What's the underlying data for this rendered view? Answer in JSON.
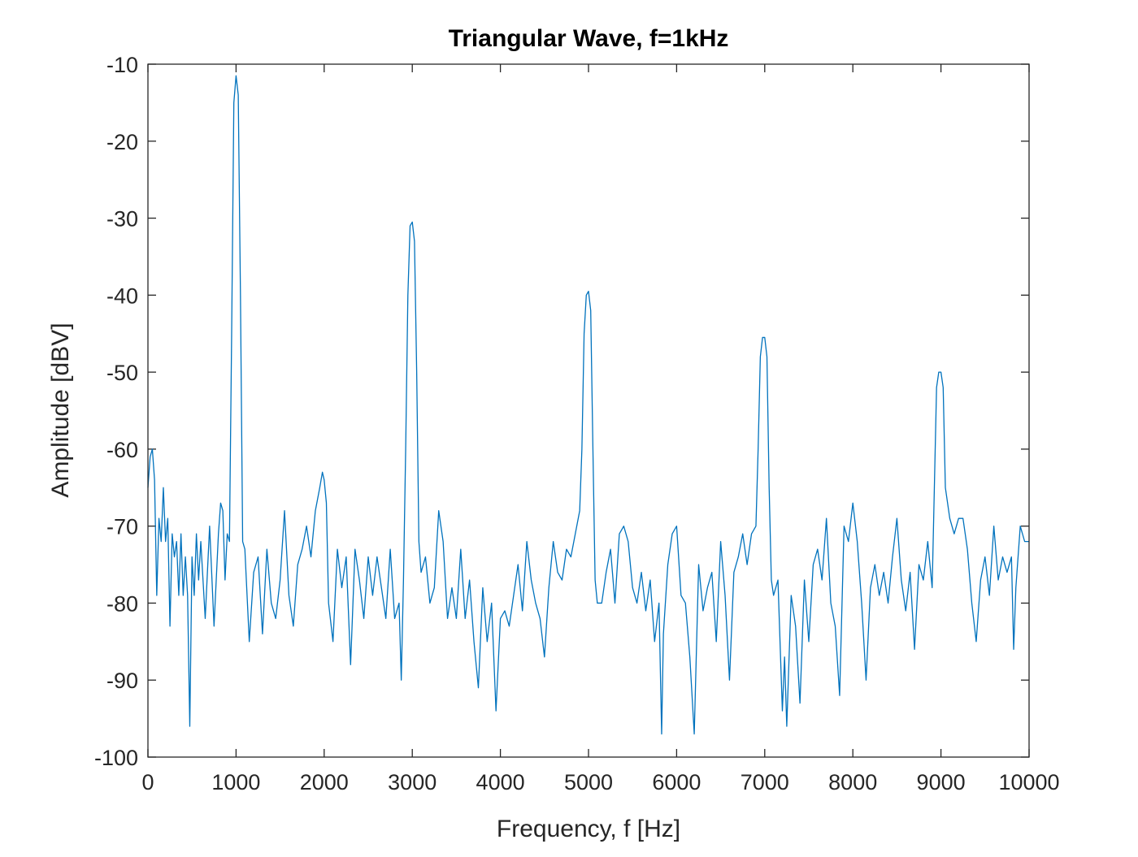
{
  "chart_data": {
    "type": "line",
    "title": "Triangular Wave, f=1kHz",
    "x_label": "Frequency, f [Hz]",
    "y_label": "Amplitude [dBV]",
    "xlim": [
      0,
      10000
    ],
    "ylim": [
      -100,
      -10
    ],
    "xticks": [
      0,
      1000,
      2000,
      3000,
      4000,
      5000,
      6000,
      7000,
      8000,
      9000,
      10000
    ],
    "yticks": [
      -100,
      -90,
      -80,
      -70,
      -60,
      -50,
      -40,
      -30,
      -20,
      -10
    ],
    "series": [
      {
        "color": "#0072bd",
        "x": [
          0,
          25,
          50,
          75,
          100,
          125,
          150,
          175,
          200,
          225,
          250,
          275,
          300,
          325,
          350,
          375,
          400,
          425,
          450,
          475,
          500,
          525,
          550,
          575,
          600,
          650,
          700,
          750,
          800,
          825,
          850,
          875,
          900,
          925,
          950,
          975,
          1000,
          1025,
          1050,
          1075,
          1100,
          1150,
          1200,
          1250,
          1300,
          1350,
          1400,
          1450,
          1500,
          1550,
          1600,
          1650,
          1700,
          1750,
          1800,
          1850,
          1900,
          1950,
          1980,
          2000,
          2025,
          2050,
          2100,
          2150,
          2200,
          2250,
          2300,
          2350,
          2400,
          2450,
          2500,
          2550,
          2600,
          2650,
          2700,
          2750,
          2800,
          2850,
          2875,
          2900,
          2925,
          2950,
          2975,
          3000,
          3025,
          3050,
          3075,
          3100,
          3150,
          3200,
          3250,
          3300,
          3350,
          3400,
          3450,
          3500,
          3550,
          3600,
          3650,
          3700,
          3750,
          3800,
          3850,
          3900,
          3950,
          4000,
          4050,
          4100,
          4150,
          4200,
          4250,
          4300,
          4350,
          4400,
          4450,
          4500,
          4550,
          4600,
          4650,
          4700,
          4750,
          4800,
          4850,
          4900,
          4925,
          4950,
          4975,
          5000,
          5025,
          5050,
          5075,
          5100,
          5150,
          5200,
          5250,
          5300,
          5350,
          5400,
          5450,
          5500,
          5550,
          5600,
          5650,
          5700,
          5750,
          5800,
          5830,
          5850,
          5900,
          5950,
          6000,
          6050,
          6100,
          6150,
          6200,
          6250,
          6300,
          6350,
          6400,
          6450,
          6500,
          6550,
          6600,
          6650,
          6700,
          6750,
          6800,
          6850,
          6900,
          6925,
          6950,
          6975,
          7000,
          7025,
          7050,
          7075,
          7100,
          7150,
          7200,
          7225,
          7250,
          7300,
          7350,
          7400,
          7450,
          7500,
          7550,
          7600,
          7650,
          7700,
          7750,
          7800,
          7850,
          7900,
          7950,
          8000,
          8050,
          8100,
          8150,
          8200,
          8250,
          8300,
          8350,
          8400,
          8450,
          8500,
          8550,
          8600,
          8650,
          8700,
          8750,
          8800,
          8850,
          8900,
          8925,
          8950,
          8975,
          9000,
          9025,
          9050,
          9100,
          9150,
          9200,
          9250,
          9300,
          9350,
          9400,
          9450,
          9500,
          9550,
          9600,
          9650,
          9700,
          9750,
          9800,
          9825,
          9850,
          9900,
          9950,
          10000
        ],
        "values": [
          -65,
          -61,
          -60,
          -64,
          -79,
          -69,
          -72,
          -65,
          -72,
          -69,
          -83,
          -71,
          -74,
          -72,
          -79,
          -71,
          -79,
          -74,
          -79,
          -96,
          -74,
          -79,
          -71,
          -77,
          -72,
          -82,
          -70,
          -83,
          -71,
          -67,
          -68,
          -77,
          -71,
          -72,
          -45,
          -15,
          -11.5,
          -14,
          -40,
          -72,
          -73,
          -85,
          -76,
          -74,
          -84,
          -73,
          -80,
          -82,
          -77,
          -68,
          -79,
          -83,
          -75,
          -73,
          -70,
          -74,
          -68,
          -65,
          -63,
          -64,
          -67,
          -80,
          -85,
          -73,
          -78,
          -74,
          -88,
          -73,
          -77,
          -82,
          -74,
          -79,
          -74,
          -78,
          -82,
          -73,
          -82,
          -80,
          -90,
          -77,
          -60,
          -40,
          -31,
          -30.5,
          -33,
          -50,
          -72,
          -76,
          -74,
          -80,
          -78,
          -68,
          -72,
          -82,
          -78,
          -82,
          -73,
          -82,
          -77,
          -85,
          -91,
          -78,
          -85,
          -80,
          -94,
          -82,
          -81,
          -83,
          -79,
          -75,
          -81,
          -72,
          -77,
          -80,
          -82,
          -87,
          -78,
          -72,
          -76,
          -77,
          -73,
          -74,
          -71,
          -68,
          -60,
          -45,
          -40,
          -39.5,
          -42,
          -60,
          -77,
          -80,
          -80,
          -76,
          -73,
          -80,
          -71,
          -70,
          -72,
          -78,
          -80,
          -76,
          -81,
          -77,
          -85,
          -80,
          -97,
          -84,
          -75,
          -71,
          -70,
          -79,
          -80,
          -87,
          -97,
          -75,
          -81,
          -78,
          -76,
          -85,
          -72,
          -79,
          -90,
          -76,
          -74,
          -71,
          -75,
          -71,
          -70,
          -60,
          -48,
          -45.5,
          -45.5,
          -48,
          -65,
          -77,
          -79,
          -77,
          -94,
          -87,
          -96,
          -79,
          -83,
          -93,
          -77,
          -85,
          -75,
          -73,
          -77,
          -69,
          -80,
          -83,
          -92,
          -70,
          -72,
          -67,
          -72,
          -80,
          -90,
          -78,
          -75,
          -79,
          -76,
          -80,
          -74,
          -69,
          -77,
          -81,
          -76,
          -86,
          -75,
          -77,
          -72,
          -78,
          -65,
          -52,
          -50,
          -50,
          -52,
          -65,
          -69,
          -71,
          -69,
          -69,
          -73,
          -80,
          -85,
          -77,
          -74,
          -79,
          -70,
          -77,
          -74,
          -76,
          -74,
          -86,
          -78,
          -70,
          -72,
          -72
        ]
      }
    ]
  }
}
